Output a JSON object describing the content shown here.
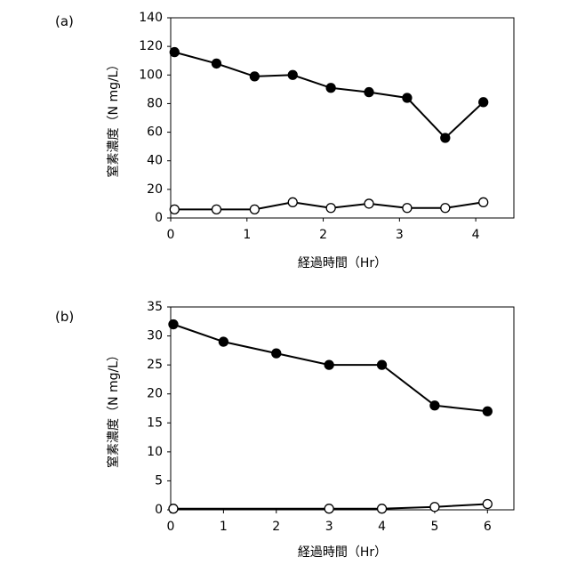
{
  "chart_data": [
    {
      "panel": "(a)",
      "type": "line",
      "xlabel": "経過時間（Hr）",
      "ylabel": "窒素濃度（N mg/L）",
      "xlim": [
        0,
        4.5
      ],
      "ylim": [
        0,
        140
      ],
      "xticks": [
        0,
        1,
        2,
        3,
        4
      ],
      "yticks": [
        0,
        20,
        40,
        60,
        80,
        100,
        120,
        140
      ],
      "grid": false,
      "series": [
        {
          "marker": "filled-circle",
          "x": [
            0.05,
            0.6,
            1.1,
            1.6,
            2.1,
            2.6,
            3.1,
            3.6,
            4.1
          ],
          "y": [
            116,
            108,
            99,
            100,
            91,
            88,
            84,
            56,
            81
          ]
        },
        {
          "marker": "open-circle",
          "x": [
            0.05,
            0.6,
            1.1,
            1.6,
            2.1,
            2.6,
            3.1,
            3.6,
            4.1
          ],
          "y": [
            6,
            6,
            6,
            11,
            7,
            10,
            7,
            7,
            11
          ]
        }
      ]
    },
    {
      "panel": "(b)",
      "type": "line",
      "xlabel": "経過時間（Hr）",
      "ylabel": "窒素濃度（N mg/L）",
      "xlim": [
        0,
        6.5
      ],
      "ylim": [
        0,
        35
      ],
      "xticks": [
        0,
        1,
        2,
        3,
        4,
        5,
        6
      ],
      "yticks": [
        0,
        5,
        10,
        15,
        20,
        25,
        30,
        35
      ],
      "grid": false,
      "series": [
        {
          "marker": "filled-circle",
          "x": [
            0.05,
            1,
            2,
            3,
            4,
            5,
            6
          ],
          "y": [
            32,
            29,
            27,
            25,
            25,
            18,
            17
          ]
        },
        {
          "marker": "open-circle",
          "x": [
            0.05,
            3,
            4,
            5,
            6
          ],
          "y": [
            0.2,
            0.2,
            0.2,
            0.5,
            1.0
          ]
        }
      ]
    }
  ]
}
